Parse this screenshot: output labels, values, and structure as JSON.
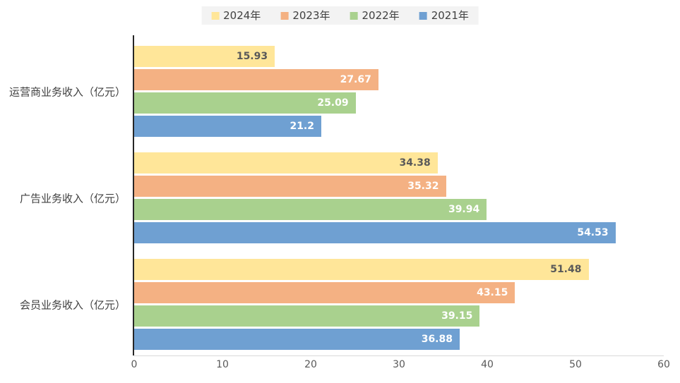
{
  "chart_data": {
    "type": "bar",
    "orientation": "horizontal",
    "categories": [
      "运营商业务收入（亿元）",
      "广告业务收入（亿元）",
      "会员业务收入（亿元）"
    ],
    "series": [
      {
        "name": "2024年",
        "color": "#FFE699",
        "value_label_color": "#595959",
        "values": [
          15.93,
          34.38,
          51.48
        ]
      },
      {
        "name": "2023年",
        "color": "#F4B183",
        "value_label_color": "#FFFFFF",
        "values": [
          27.67,
          35.32,
          43.15
        ]
      },
      {
        "name": "2022年",
        "color": "#A9D18E",
        "value_label_color": "#FFFFFF",
        "values": [
          25.09,
          39.94,
          39.15
        ]
      },
      {
        "name": "2021年",
        "color": "#6FA0D2",
        "value_label_color": "#FFFFFF",
        "values": [
          21.2,
          54.53,
          36.88
        ]
      }
    ],
    "xlim": [
      0,
      60
    ],
    "x_ticks": [
      0,
      10,
      20,
      30,
      40,
      50,
      60
    ],
    "legend_position": "top",
    "legend_background": "#F3F3F3",
    "grid": false,
    "axis_line_color": "#262626",
    "baseline_color": "#D9D9D9",
    "title": ""
  }
}
